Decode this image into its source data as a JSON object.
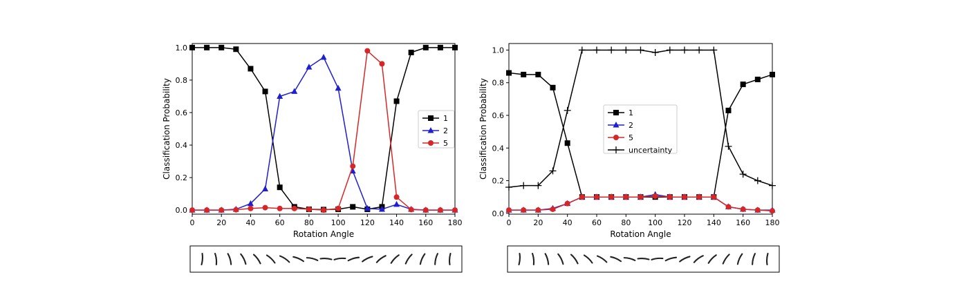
{
  "chart_data": [
    {
      "type": "line",
      "title": "",
      "xlabel": "Rotation Angle",
      "ylabel": "Classification Probability",
      "xlim": [
        0,
        180
      ],
      "ylim": [
        -0.025,
        1.025
      ],
      "xticks": [
        0,
        20,
        40,
        60,
        80,
        100,
        120,
        140,
        160,
        180
      ],
      "xtick_labels": [
        "0",
        "20",
        "40",
        "60",
        "80",
        "100",
        "120",
        "140",
        "160",
        "180"
      ],
      "yticks": [
        0.0,
        0.2,
        0.4,
        0.6,
        0.8,
        1.0
      ],
      "ytick_labels": [
        "0.0",
        "0.2",
        "0.4",
        "0.6",
        "0.8",
        "1.0"
      ],
      "grid": false,
      "legend_position": "center-right",
      "x": [
        0,
        10,
        20,
        30,
        40,
        50,
        60,
        70,
        80,
        90,
        100,
        110,
        120,
        130,
        140,
        150,
        160,
        170,
        180
      ],
      "series": [
        {
          "name": "1",
          "color": "#000000",
          "marker": "square",
          "values": [
            1.0,
            1.0,
            1.0,
            0.99,
            0.87,
            0.73,
            0.14,
            0.02,
            0.005,
            0.003,
            0.005,
            0.02,
            0.005,
            0.02,
            0.67,
            0.97,
            1.0,
            1.0,
            1.0
          ]
        },
        {
          "name": "2",
          "color": "#1f1fcf",
          "marker": "triangle",
          "values": [
            0.0,
            0.0,
            0.0,
            0.005,
            0.04,
            0.13,
            0.7,
            0.73,
            0.88,
            0.94,
            0.75,
            0.24,
            0.01,
            0.005,
            0.035,
            0.005,
            0.0,
            0.0,
            0.0
          ]
        },
        {
          "name": "5",
          "color": "#d62728",
          "marker": "circle",
          "values": [
            0.0,
            0.0,
            0.0,
            0.002,
            0.01,
            0.015,
            0.01,
            0.01,
            0.005,
            0.0,
            0.01,
            0.27,
            0.98,
            0.9,
            0.08,
            0.003,
            0.0,
            0.0,
            0.0
          ]
        }
      ]
    },
    {
      "type": "line",
      "title": "",
      "xlabel": "Rotation Angle",
      "ylabel": "Classification Probability",
      "xlim": [
        0,
        180
      ],
      "ylim": [
        -0.005,
        1.04
      ],
      "xticks": [
        0,
        20,
        40,
        60,
        80,
        100,
        120,
        140,
        160,
        180
      ],
      "xtick_labels": [
        "0",
        "20",
        "40",
        "60",
        "80",
        "100",
        "120",
        "140",
        "160",
        "180"
      ],
      "yticks": [
        0.0,
        0.2,
        0.4,
        0.6,
        0.8,
        1.0
      ],
      "ytick_labels": [
        "0.0",
        "0.2",
        "0.4",
        "0.6",
        "0.8",
        "1.0"
      ],
      "grid": false,
      "legend_position": "center",
      "x": [
        0,
        10,
        20,
        30,
        40,
        50,
        60,
        70,
        80,
        90,
        100,
        110,
        120,
        130,
        140,
        150,
        160,
        170,
        180
      ],
      "series": [
        {
          "name": "1",
          "color": "#000000",
          "marker": "square",
          "values": [
            0.86,
            0.85,
            0.85,
            0.77,
            0.43,
            0.1,
            0.1,
            0.1,
            0.1,
            0.1,
            0.1,
            0.1,
            0.1,
            0.1,
            0.1,
            0.63,
            0.79,
            0.82,
            0.85
          ]
        },
        {
          "name": "2",
          "color": "#1f1fcf",
          "marker": "triangle",
          "values": [
            0.02,
            0.02,
            0.02,
            0.03,
            0.06,
            0.1,
            0.1,
            0.1,
            0.1,
            0.1,
            0.115,
            0.1,
            0.1,
            0.1,
            0.1,
            0.04,
            0.025,
            0.02,
            0.02
          ]
        },
        {
          "name": "5",
          "color": "#d62728",
          "marker": "circle",
          "values": [
            0.02,
            0.02,
            0.02,
            0.025,
            0.06,
            0.1,
            0.1,
            0.1,
            0.1,
            0.1,
            0.105,
            0.1,
            0.1,
            0.1,
            0.1,
            0.04,
            0.025,
            0.02,
            0.015
          ]
        },
        {
          "name": "uncertainty",
          "color": "#000000",
          "marker": "plus",
          "values": [
            0.16,
            0.17,
            0.17,
            0.26,
            0.63,
            1.0,
            1.0,
            1.0,
            1.0,
            1.0,
            0.985,
            1.0,
            1.0,
            1.0,
            1.0,
            0.41,
            0.24,
            0.2,
            0.17
          ]
        }
      ]
    }
  ],
  "digit_strip": {
    "digit": "1",
    "angles": [
      0,
      10,
      20,
      30,
      40,
      50,
      60,
      70,
      80,
      90,
      100,
      110,
      120,
      130,
      140,
      150,
      160,
      170,
      180
    ]
  }
}
